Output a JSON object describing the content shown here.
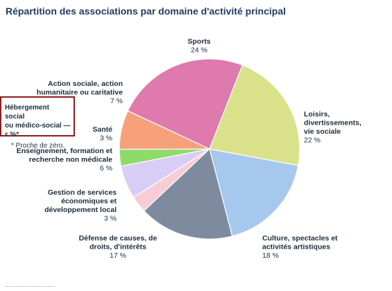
{
  "chart_data": {
    "type": "pie",
    "title": "Répartition des associations par domaine d'activité principal",
    "slices": [
      {
        "label": "Sports",
        "value": 24,
        "value_text": "24 %",
        "color": "#de7aae"
      },
      {
        "label": "Loisirs, divertissements, vie sociale",
        "lines": [
          "Loisirs,",
          "divertissements,",
          "vie sociale"
        ],
        "value": 22,
        "value_text": "22 %",
        "color": "#d9e28a"
      },
      {
        "label": "Culture, spectacles et activités artistiques",
        "lines": [
          "Culture, spectacles et",
          "activités artistiques"
        ],
        "value": 18,
        "value_text": "18 %",
        "color": "#a6c8ef"
      },
      {
        "label": "Défense de causes, de droits, d'intérêts",
        "lines": [
          "Défense de causes, de",
          "droits, d'intérêts"
        ],
        "value": 17,
        "value_text": "17 %",
        "color": "#7e8b9f"
      },
      {
        "label": "Gestion de services économiques et développement local",
        "lines": [
          "Gestion de services",
          "économiques et",
          "développement local"
        ],
        "value": 3,
        "value_text": "3 %",
        "color": "#f7ccd6"
      },
      {
        "label": "Enseignement, formation et recherche non médicale",
        "lines": [
          "Enseignement, formation et",
          "recherche non médicale"
        ],
        "value": 6,
        "value_text": "6 %",
        "color": "#d8cdf5"
      },
      {
        "label": "Santé",
        "lines": [
          "Santé"
        ],
        "value": 3,
        "value_text": "3 %",
        "color": "#8fdb6a"
      },
      {
        "label": "Action sociale, action humanitaire ou caritative",
        "lines": [
          "Action sociale, action",
          "humanitaire ou caritative"
        ],
        "value": 7,
        "value_text": "7 %",
        "color": "#f7a07c"
      },
      {
        "label": "Hébergement social ou médico-social",
        "value": 0,
        "value_text": "ε %*",
        "color": "#8b1c1c"
      }
    ]
  },
  "note": {
    "label_line1": "Hébergement social",
    "label_line2": "ou médico-social — ε %*",
    "footnote": "* Proche de zéro."
  }
}
